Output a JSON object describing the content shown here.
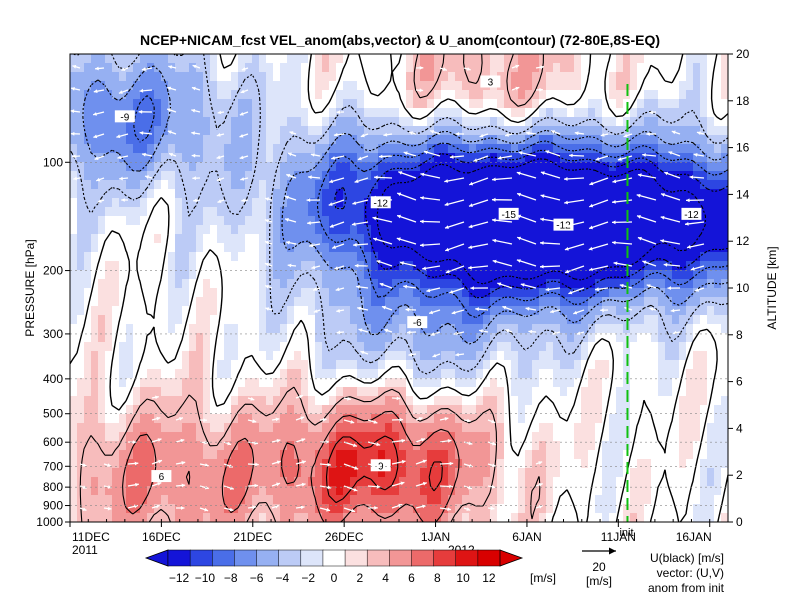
{
  "chart_data": {
    "type": "heatmap",
    "title": "NCEP+NICAM_fcst VEL_anom(abs,vector) & U_anom(contour)   (72-80E,8S-EQ)",
    "ylabel_left": "PRESSURE [hPa]",
    "ylabel_right": "ALTITUDE [km]",
    "x_ticks": [
      "11DEC",
      "16DEC",
      "21DEC",
      "26DEC",
      "1JAN",
      "6JAN",
      "11JAN",
      "16JAN"
    ],
    "x_year_labels": [
      "2011",
      "2012"
    ],
    "x_range_days": [
      0,
      36
    ],
    "pressure_ticks": [
      100,
      200,
      300,
      400,
      500,
      600,
      700,
      800,
      900,
      1000
    ],
    "pressure_range": [
      50,
      1000
    ],
    "pressure_scale": "log",
    "altitude_ticks": [
      0,
      2,
      4,
      6,
      8,
      10,
      12,
      14,
      16,
      18,
      20
    ],
    "init_day": 30.5,
    "init_label": "init",
    "colorbar": {
      "ticks": [
        -12,
        -10,
        -8,
        -6,
        -4,
        -2,
        0,
        2,
        4,
        6,
        8,
        10,
        12
      ],
      "unit": "[m/s]",
      "levels": [
        -14,
        -12,
        -10,
        -8,
        -6,
        -4,
        -2,
        -1,
        1,
        2,
        4,
        6,
        8,
        10,
        12,
        14
      ],
      "colors": [
        "#1414d8",
        "#2d46e2",
        "#4a6ee8",
        "#6f90ee",
        "#96b0f2",
        "#bccbf6",
        "#dde5fa",
        "#ffffff",
        "#fbe0e0",
        "#f7bcbc",
        "#f29696",
        "#ec6a6a",
        "#e63c3c",
        "#de1414",
        "#d80000"
      ]
    },
    "vector_reference": {
      "value": "20",
      "unit": "[m/s]"
    },
    "legend_lines": [
      "U(black) [m/s]",
      "vector: (U,V)",
      "anom from init"
    ],
    "anomaly_features": [
      {
        "center_day": 17,
        "center_hpa": 130,
        "amplitude": -11
      },
      {
        "center_day": 24,
        "center_hpa": 140,
        "amplitude": -15
      },
      {
        "center_day": 27,
        "center_hpa": 150,
        "amplitude": -12
      },
      {
        "center_day": 34,
        "center_hpa": 140,
        "amplitude": -13
      },
      {
        "center_day": 3,
        "center_hpa": 75,
        "amplitude": -8
      },
      {
        "center_day": 19,
        "center_hpa": 280,
        "amplitude": -5
      },
      {
        "center_day": 17,
        "center_hpa": 700,
        "amplitude": 10
      },
      {
        "center_day": 5,
        "center_hpa": 750,
        "amplitude": 6
      },
      {
        "center_day": 23,
        "center_hpa": 60,
        "amplitude": 4
      }
    ]
  }
}
